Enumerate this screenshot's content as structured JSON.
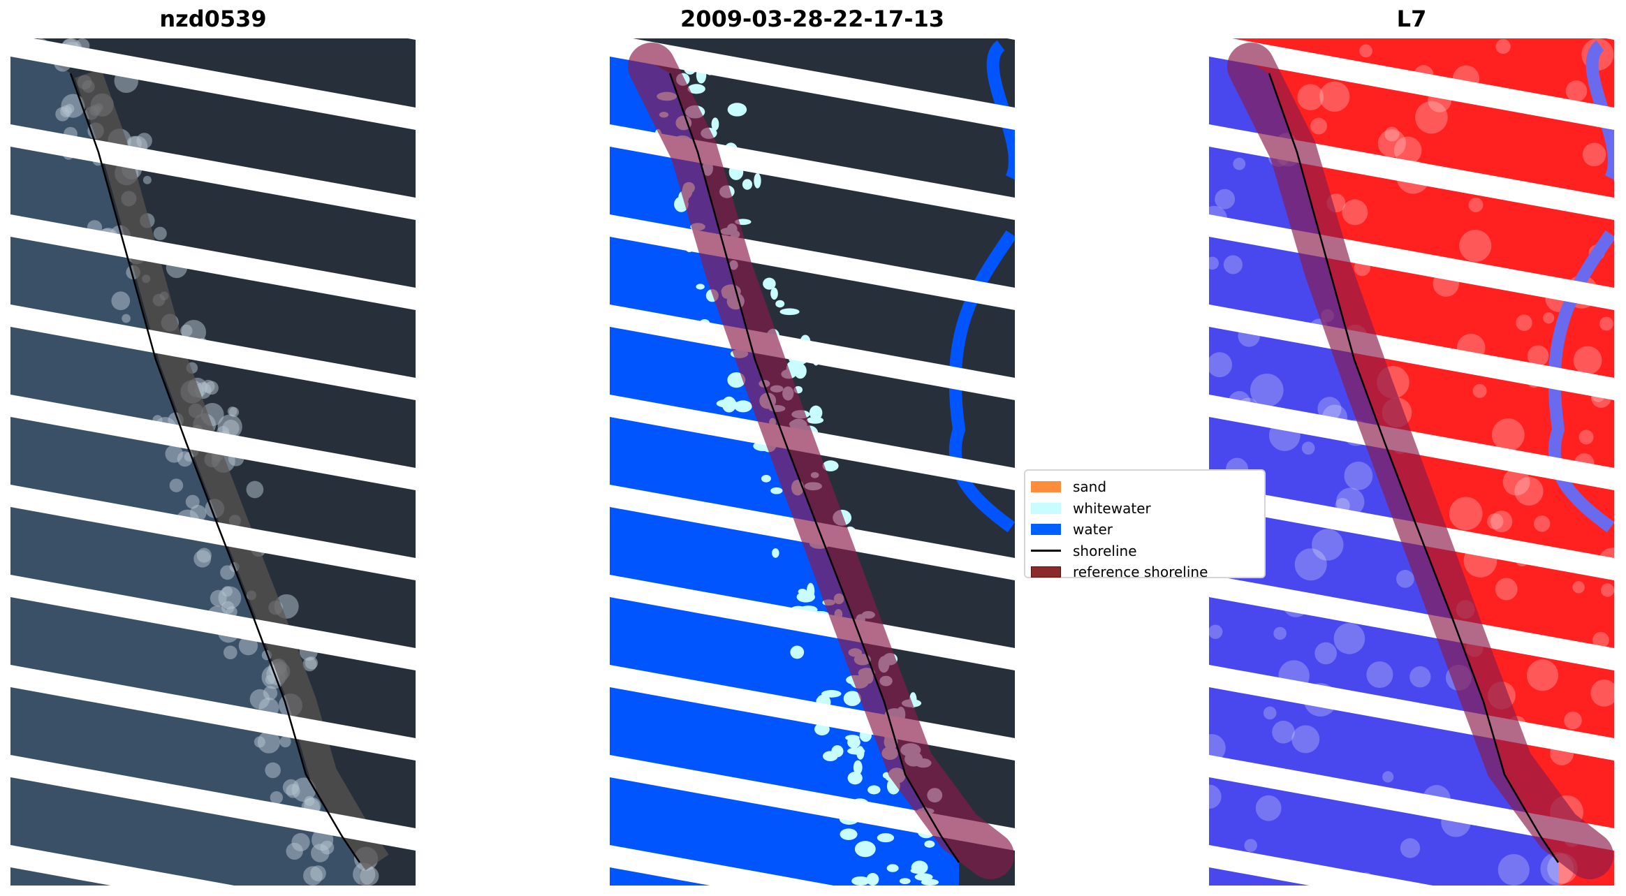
{
  "panels": [
    {
      "title": "nzd0539",
      "kind": "rgb"
    },
    {
      "title": "2009-03-28-22-17-13",
      "kind": "classified"
    },
    {
      "title": "L7",
      "kind": "index"
    }
  ],
  "legend": {
    "items": [
      {
        "label": "sand",
        "color": "#ff8c3a",
        "type": "patch"
      },
      {
        "label": "whitewater",
        "color": "#c8fcff",
        "type": "patch"
      },
      {
        "label": "water",
        "color": "#0060ff",
        "type": "patch"
      },
      {
        "label": "shoreline",
        "color": "#000000",
        "type": "line"
      },
      {
        "label": "reference shoreline",
        "color": "#8b2a2a",
        "type": "patch"
      }
    ]
  },
  "colors": {
    "land": "#27303a",
    "sea_rgb": "#3a5066",
    "water": "#0055ff",
    "whitewater": "#c8fcff",
    "index_land": "#ff2020",
    "index_water": "#4848ee",
    "reference_band": "#8b1a4a",
    "nodata_stripes": "#ffffff"
  }
}
